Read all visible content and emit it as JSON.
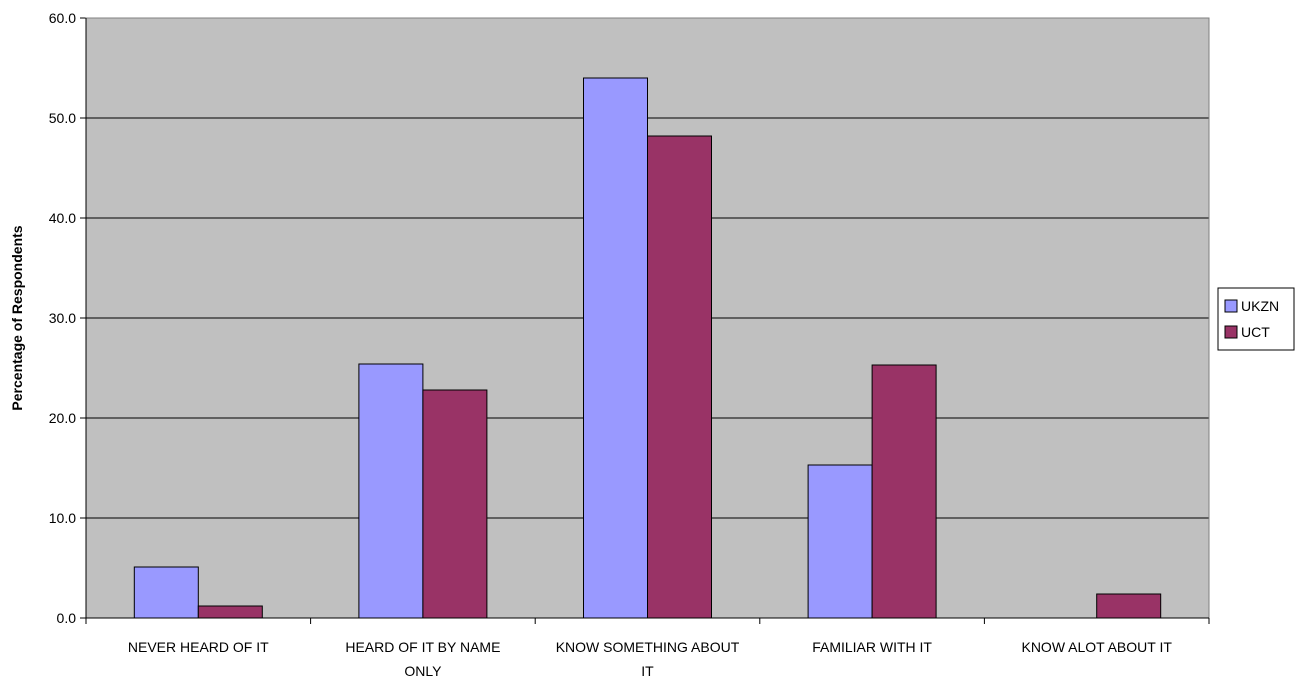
{
  "chart_data": {
    "type": "bar",
    "title": "",
    "xlabel": "",
    "ylabel": "Percentage of Respondents",
    "categories": [
      [
        "NEVER HEARD OF IT"
      ],
      [
        "HEARD OF IT BY NAME",
        "ONLY"
      ],
      [
        "KNOW SOMETHING ABOUT",
        "IT"
      ],
      [
        "FAMILIAR WITH IT"
      ],
      [
        "KNOW ALOT ABOUT IT"
      ]
    ],
    "series": [
      {
        "name": "UKZN",
        "color": "#9999ff",
        "values": [
          5.1,
          25.4,
          54.0,
          15.3,
          0.0
        ]
      },
      {
        "name": "UCT",
        "color": "#993366",
        "values": [
          1.2,
          22.8,
          48.2,
          25.3,
          2.4
        ]
      }
    ],
    "ylim": [
      0,
      60
    ],
    "yticks": [
      "0.0",
      "10.0",
      "20.0",
      "30.0",
      "40.0",
      "50.0",
      "60.0"
    ],
    "grid": true,
    "plot_background": "#c0c0c0",
    "legend": "right"
  }
}
